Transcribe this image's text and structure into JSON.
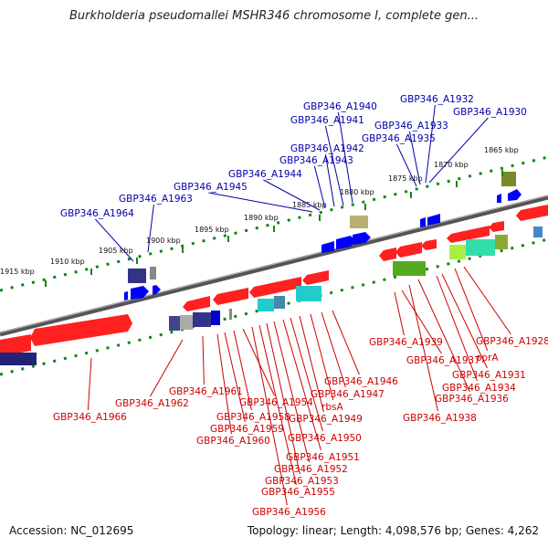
{
  "title": "Burkholderia pseudomallei MSHR346 chromosome I, complete gen...",
  "footer": {
    "accession": "Accession: NC_012695",
    "topology": "Topology: linear; Length: 4,098,576 bp; Genes: 4,262"
  },
  "colors": {
    "forward_label": "#0000aa",
    "reverse_label": "#cc0000",
    "backbone": "#777777",
    "ticks": "#118811",
    "forward_gene": "#0000ff",
    "reverse_gene": "#ff0000"
  },
  "scale_labels": [
    "1865 kbp",
    "1870 kbp",
    "1875 kbp",
    "1880 kbp",
    "1885 kbp",
    "1890 kbp",
    "1895 kbp",
    "1900 kbp",
    "1905 kbp",
    "1910 kbp",
    "1915 kbp"
  ],
  "forward_genes": [
    "GBP346_A1932",
    "GBP346_A1930",
    "GBP346_A1940",
    "GBP346_A1941",
    "GBP346_A1933",
    "GBP346_A1935",
    "GBP346_A1942",
    "GBP346_A1943",
    "GBP346_A1944",
    "GBP346_A1945",
    "GBP346_A1963",
    "GBP346_A1964"
  ],
  "reverse_genes": [
    "GBP346_A1928",
    "GBP346_A1939",
    "oprA",
    "GBP346_A1937",
    "GBP346_A1931",
    "GBP346_A1934",
    "GBP346_A1936",
    "GBP346_A1938",
    "GBP346_A1946",
    "GBP346_A1947",
    "rbsA",
    "GBP346_A1949",
    "GBP346_A1950",
    "GBP346_A1951",
    "GBP346_A1952",
    "GBP346_A1953",
    "GBP346_A1955",
    "GBP346_A1956",
    "GBP346_A1961",
    "GBP346_A1954",
    "GBP346_A1958",
    "GBP346_A1959",
    "GBP346_A1960",
    "GBP346_A1962",
    "GBP346_A1966"
  ]
}
